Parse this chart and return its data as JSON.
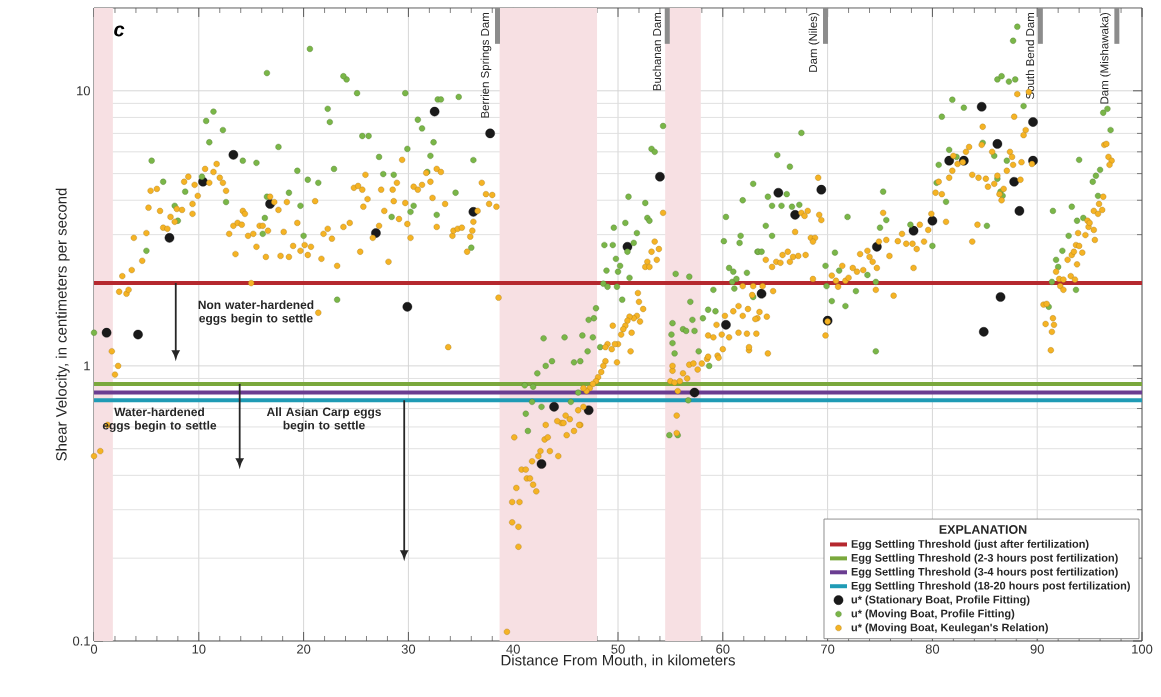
{
  "chart_data": {
    "type": "scatter",
    "xlabel": "Distance From Mouth, in kilometers",
    "ylabel": "Shear Velocity, in centimeters per second",
    "xlim": [
      0,
      100
    ],
    "xticks": [
      0,
      10,
      20,
      30,
      40,
      50,
      60,
      70,
      80,
      90,
      100
    ],
    "ylim": [
      0.1,
      20
    ],
    "yticks": [
      0.1,
      1,
      10
    ],
    "log": "y",
    "grid": true,
    "legend": "bottom right",
    "legend_title": "EXPLANATION",
    "marker": "circle",
    "ref_lines": [
      {
        "axis": "y",
        "value": 2.0,
        "label": "Egg Settling Threshold (just after fertilization)",
        "color": "#b5282e"
      },
      {
        "axis": "y",
        "value": 0.86,
        "label": "Egg Settling Threshold (2-3 hours post fertilization)",
        "color": "#7aa83c"
      },
      {
        "axis": "y",
        "value": 0.8,
        "label": "Egg Settling Threshold (3-4 hours post fertilization)",
        "color": "#6a3d91"
      },
      {
        "axis": "y",
        "value": 0.75,
        "label": "Egg Settling Threshold (18-20 hours post fertilization)",
        "color": "#1f9bb5"
      },
      {
        "axis": "x",
        "value": 38.5,
        "label": "Berrien Springs Dam",
        "color": "#8c8c8c"
      },
      {
        "axis": "x",
        "value": 54.7,
        "label": "Buchanan Dam",
        "color": "#8c8c8c"
      },
      {
        "axis": "x",
        "value": 69.8,
        "label": "Dam (Niles)",
        "color": "#8c8c8c"
      },
      {
        "axis": "x",
        "value": 90.3,
        "label": "South Bend Dam",
        "color": "#8c8c8c"
      },
      {
        "axis": "x",
        "value": 97.6,
        "label": "Dam (Mishawaka)",
        "color": "#8c8c8c"
      }
    ],
    "bands": [
      {
        "axis": "x",
        "from": 0,
        "to": 1.8,
        "color": "#f7e0e3"
      },
      {
        "axis": "x",
        "from": 38.7,
        "to": 48,
        "color": "#f7e0e3"
      },
      {
        "axis": "x",
        "from": 54.5,
        "to": 57.9,
        "color": "#f7e0e3"
      }
    ],
    "annotations": [
      "c",
      {
        "text": "Non water-hardened eggs begin to settle",
        "x": 7.8,
        "y": 2.0
      },
      {
        "text": "Water-hardened eggs begin to settle",
        "x": 13.9,
        "y": 0.86
      },
      {
        "text": "All Asian Carp eggs begin to settle",
        "x": 29.6,
        "y": 0.75
      }
    ],
    "series": [
      {
        "name": "u* (Stationary Boat, Profile Fitting)",
        "color": "#1a1a1a",
        "x": [
          1.2,
          4.2,
          7.2,
          10.4,
          13.3,
          16.8,
          26.9,
          29.9,
          32.5,
          36.2,
          37.8,
          42.7,
          43.9,
          47.2,
          50.9,
          54.0,
          57.3,
          60.3,
          63.7,
          65.3,
          66.9,
          69.4,
          70.0,
          74.7,
          78.2,
          80.0,
          81.6,
          83.0,
          84.7,
          84.9,
          86.2,
          86.5,
          87.8,
          88.3,
          89.6,
          89.6
        ],
        "values": [
          1.32,
          1.3,
          2.92,
          4.67,
          5.85,
          3.88,
          3.04,
          1.64,
          8.4,
          3.63,
          7.0,
          0.44,
          0.71,
          0.69,
          2.71,
          4.87,
          0.8,
          1.41,
          1.83,
          4.26,
          3.54,
          4.37,
          1.46,
          2.71,
          3.1,
          3.37,
          5.57,
          5.57,
          8.75,
          1.33,
          6.41,
          1.78,
          4.67,
          3.66,
          7.7,
          5.57
        ]
      },
      {
        "name": "u* (Moving Boat, Profile Fitting)",
        "color": "#7ab648",
        "x": [
          0.0,
          5.5,
          6.6,
          7.7,
          8.0,
          5.0,
          8.7,
          10.3,
          10.7,
          11.4,
          11.0,
          12.3,
          12.6,
          14.2,
          15.5,
          16.5,
          17.6,
          18.6,
          19.4,
          19.7,
          20.0,
          16.1,
          16.3,
          20.4,
          21.4,
          22.3,
          22.5,
          22.9,
          23.2,
          24.1,
          25.1,
          25.6,
          26.2,
          27.2,
          27.6,
          28.6,
          28.4,
          29.7,
          29.9,
          30.2,
          30.9,
          31.3,
          32.1,
          32.4,
          32.7,
          32.8,
          16.5,
          20.6,
          23.8,
          88.1,
          87.7,
          86.2,
          86.6,
          33.1,
          34.8,
          31.8,
          30.5,
          34.5,
          36.2,
          36.0,
          54.3,
          53.2,
          53.5,
          51.0,
          52.6,
          52.8,
          53.0,
          49.6,
          50.7,
          51.8,
          48.7,
          49.5,
          51.5,
          50.9,
          49.8,
          50.2,
          48.9,
          50.0,
          51.1,
          48.6,
          49.0,
          49.9,
          50.4,
          47.9,
          47.7,
          47.2,
          46.6,
          47.6,
          44.9,
          42.9,
          47.1,
          48.3,
          45.8,
          46.4,
          43.7,
          43.1,
          42.3,
          41.1,
          41.9,
          46.2,
          41.8,
          45.5,
          41.2,
          42.7,
          41.4,
          55.5,
          56.8,
          56.9,
          57.1,
          55.2,
          56.2,
          57.3,
          56.5,
          55.1,
          55.2,
          55.4,
          58.1,
          58.6,
          59.3,
          59.1,
          60.6,
          60.9,
          61.1,
          61.3,
          60.3,
          60.1,
          61.6,
          61.7,
          61.9,
          62.9,
          63.3,
          62.3,
          61.0,
          54.9,
          55.7,
          58.7,
          56.7,
          57.7,
          67.5,
          65.2,
          66.4,
          64.3,
          64.7,
          66.1,
          65.6,
          66.6,
          67.3,
          64.1,
          64.7,
          63.4,
          63.7,
          62.9,
          70.7,
          69.8,
          71.1,
          69.9,
          70.4,
          71.7,
          72.7,
          73.8,
          71.9,
          75.0,
          75.6,
          75.3,
          74.6,
          74.6,
          77.9,
          80.0,
          81.3,
          80.4,
          80.6,
          81.6,
          80.9,
          81.9,
          83.0,
          82.3,
          84.8,
          85.9,
          87.1,
          86.2,
          86.5,
          86.7,
          85.2,
          88.7,
          87.3,
          87.9,
          94.0,
          91.5,
          93.3,
          93.0,
          92.4,
          91.8,
          92.0,
          91.4,
          91.1,
          93.7,
          93.8,
          94.4,
          95.3,
          95.6,
          95.8,
          96.0,
          96.3,
          96.7,
          97.0
        ],
        "values": [
          1.32,
          5.57,
          4.67,
          3.82,
          3.37,
          2.62,
          4.3,
          4.87,
          7.77,
          8.4,
          6.5,
          7.2,
          3.94,
          5.57,
          5.47,
          4.12,
          6.25,
          4.26,
          5.12,
          3.82,
          2.97,
          3.02,
          3.45,
          4.75,
          4.63,
          8.6,
          7.7,
          5.2,
          1.74,
          11.0,
          9.8,
          6.85,
          6.85,
          5.75,
          4.98,
          4.95,
          3.48,
          9.8,
          6.15,
          3.63,
          7.85,
          7.3,
          5.8,
          6.5,
          3.54,
          9.3,
          11.6,
          14.2,
          11.3,
          17.1,
          15.2,
          11.0,
          11.3,
          9.3,
          9.5,
          5.07,
          3.82,
          4.26,
          5.6,
          2.69,
          7.45,
          6.15,
          6.0,
          4.12,
          3.91,
          3.45,
          3.37,
          3.18,
          3.31,
          3.04,
          2.75,
          2.75,
          2.8,
          2.6,
          2.45,
          2.31,
          2.22,
          2.2,
          2.09,
          1.99,
          1.94,
          1.94,
          1.74,
          1.62,
          1.49,
          1.47,
          1.29,
          1.27,
          1.27,
          1.26,
          1.13,
          1.17,
          1.03,
          1.04,
          1.04,
          1.0,
          0.94,
          0.85,
          0.84,
          0.8,
          0.74,
          0.74,
          0.67,
          0.71,
          0.58,
          2.16,
          2.11,
          1.71,
          1.47,
          1.43,
          1.36,
          1.34,
          1.34,
          1.3,
          1.21,
          1.11,
          1.49,
          1.6,
          1.58,
          1.89,
          2.27,
          2.02,
          1.91,
          2.07,
          3.48,
          2.84,
          2.8,
          2.97,
          4.0,
          4.59,
          2.6,
          2.18,
          2.2,
          0.56,
          0.56,
          1.0,
          0.75,
          1.13,
          7.03,
          5.84,
          5.3,
          4.12,
          3.82,
          4.21,
          3.82,
          3.79,
          3.85,
          3.23,
          2.97,
          2.6,
          2.6,
          1.78,
          2.58,
          2.31,
          2.22,
          1.95,
          1.72,
          1.65,
          1.87,
          2.14,
          3.48,
          3.18,
          3.39,
          4.3,
          2.02,
          1.13,
          3.26,
          2.73,
          3.95,
          4.63,
          5.38,
          6.1,
          8.05,
          9.28,
          8.68,
          5.75,
          6.47,
          5.8,
          5.57,
          4.79,
          4.3,
          4.15,
          3.23,
          8.8,
          10.8,
          11.0,
          5.61,
          3.66,
          3.79,
          2.97,
          2.62,
          2.43,
          2.29,
          2.02,
          1.64,
          1.89,
          3.37,
          3.45,
          4.67,
          4.91,
          4.15,
          5.16,
          8.32,
          8.6,
          7.2
        ]
      },
      {
        "name": "u* (Moving Boat, Keulegan's Relation)",
        "color": "#f5b324",
        "x": [
          0.0,
          0.6,
          1.3,
          1.7,
          2.3,
          2.0,
          2.4,
          3.1,
          3.3,
          2.7,
          3.6,
          3.8,
          4.6,
          5.0,
          5.2,
          5.4,
          6.0,
          6.3,
          6.6,
          7.0,
          7.3,
          7.7,
          7.9,
          8.4,
          8.6,
          9.0,
          9.4,
          9.4,
          9.6,
          9.9,
          10.6,
          11.0,
          11.4,
          11.7,
          12.0,
          12.3,
          12.6,
          12.9,
          13.3,
          13.5,
          13.7,
          14.1,
          14.2,
          14.4,
          14.7,
          15.2,
          15.0,
          15.5,
          15.8,
          16.1,
          16.4,
          16.6,
          16.8,
          17.2,
          17.6,
          17.8,
          18.1,
          18.4,
          18.6,
          19.0,
          19.4,
          19.7,
          20.1,
          20.4,
          20.7,
          21.1,
          21.4,
          21.7,
          21.9,
          22.3,
          22.7,
          23.2,
          23.8,
          24.4,
          24.8,
          25.2,
          25.6,
          25.7,
          26.1,
          25.9,
          25.4,
          26.6,
          27.2,
          27.4,
          27.7,
          28.1,
          28.5,
          28.6,
          28.9,
          29.1,
          29.4,
          29.7,
          29.9,
          30.2,
          30.5,
          30.9,
          31.3,
          31.7,
          32.1,
          32.3,
          32.7,
          32.7,
          33.1,
          33.5,
          33.8,
          34.2,
          34.3,
          34.7,
          35.1,
          35.6,
          35.9,
          36.1,
          36.2,
          36.6,
          37.0,
          37.4,
          38.0,
          37.7,
          38.4,
          38.6,
          53.5,
          53.2,
          53.9,
          53.7,
          52.8,
          52.6,
          53.0,
          54.3,
          51.9,
          52.0,
          52.4,
          51.8,
          51.5,
          51.1,
          50.9,
          50.7,
          50.5,
          52.1,
          51.3,
          49.5,
          50.3,
          50.0,
          49.7,
          49.0,
          48.8,
          49.4,
          51.2,
          49.9,
          48.8,
          48.6,
          48.4,
          48.1,
          47.9,
          47.6,
          47.3,
          47.0,
          46.7,
          46.2,
          46.7,
          46.4,
          45.8,
          45.4,
          45.0,
          44.6,
          44.2,
          43.1,
          40.1,
          40.3,
          39.9,
          40.6,
          39.9,
          40.5,
          40.5,
          39.4,
          40.8,
          41.2,
          41.3,
          41.6,
          41.9,
          42.2,
          41.8,
          42.4,
          42.6,
          43.0,
          43.3,
          43.5,
          44.3,
          44.8,
          45.1,
          46.3,
          55.2,
          55.0,
          55.4,
          55.9,
          56.2,
          56.6,
          56.8,
          57.2,
          57.6,
          58.0,
          58.5,
          55.7,
          55.6,
          55.6,
          55.2,
          59.5,
          60.0,
          62.5,
          64.3,
          58.6,
          59.6,
          62.5,
          58.6,
          59.1,
          59.9,
          60.6,
          61.5,
          62.3,
          63.2,
          59.4,
          60.2,
          61.0,
          61.5,
          61.9,
          62.4,
          63.3,
          61.9,
          62.9,
          62.8,
          63.1,
          63.5,
          64.2,
          63.8,
          64.8,
          64.1,
          64.7,
          65.1,
          65.5,
          65.7,
          66.2,
          66.7,
          67.2,
          67.9,
          66.4,
          66.9,
          67.5,
          67.8,
          68.1,
          68.4,
          68.8,
          68.6,
          69.1,
          69.2,
          69.4,
          68.6,
          69.8,
          70.0,
          70.4,
          70.8,
          71.0,
          71.4,
          71.7,
          72.0,
          72.4,
          72.8,
          73.1,
          73.4,
          73.8,
          74.0,
          74.3,
          74.7,
          74.6,
          74.9,
          75.3,
          75.6,
          75.9,
          76.3,
          76.7,
          77.1,
          77.5,
          78.1,
          78.5,
          78.2,
          78.8,
          79.2,
          79.6,
          79.9,
          80.3,
          80.9,
          80.6,
          81.3,
          81.6,
          81.9,
          82.0,
          82.4,
          82.9,
          83.2,
          83.5,
          83.8,
          84.4,
          84.7,
          84.8,
          84.3,
          83.8,
          85.1,
          85.3,
          85.7,
          85.9,
          86.2,
          86.4,
          86.6,
          86.8,
          87.1,
          87.4,
          87.6,
          87.7,
          88.4,
          88.5,
          87.8,
          88.1,
          89.2,
          88.9,
          88.7,
          89.5,
          90.6,
          90.9,
          90.8,
          91.5,
          91.6,
          91.4,
          91.3,
          91.8,
          92.1,
          92.5,
          92.2,
          92.5,
          92.9,
          93.3,
          93.5,
          93.8,
          93.7,
          94.0,
          94.3,
          93.2,
          93.6,
          93.9,
          94.6,
          94.9,
          94.8,
          95.0,
          95.4,
          95.5,
          95.4,
          95.8,
          95.9,
          96.2,
          96.3,
          96.4,
          96.6,
          96.8,
          97.1,
          96.9
        ],
        "values": [
          0.47,
          0.49,
          0.61,
          1.13,
          1.0,
          0.93,
          1.86,
          1.83,
          1.89,
          2.12,
          2.23,
          2.92,
          2.41,
          3.04,
          3.76,
          4.33,
          4.4,
          3.66,
          3.18,
          3.15,
          3.48,
          3.34,
          3.72,
          3.69,
          4.67,
          4.87,
          3.57,
          3.88,
          4.55,
          4.15,
          5.2,
          4.63,
          5.07,
          5.42,
          4.83,
          4.63,
          4.33,
          3.02,
          3.23,
          2.55,
          3.31,
          3.26,
          3.66,
          3.57,
          2.97,
          3.02,
          2.0,
          2.71,
          3.23,
          3.23,
          2.49,
          3.1,
          4.12,
          3.94,
          3.69,
          2.51,
          3.07,
          3.94,
          2.49,
          2.73,
          3.31,
          2.62,
          2.75,
          2.53,
          2.71,
          3.97,
          1.56,
          2.45,
          3.02,
          3.15,
          2.9,
          2.31,
          3.2,
          3.31,
          4.44,
          4.51,
          4.37,
          3.79,
          4.04,
          4.95,
          2.6,
          2.92,
          3.23,
          4.37,
          3.66,
          2.39,
          4.37,
          3.97,
          4.63,
          3.42,
          5.61,
          3.91,
          3.28,
          2.92,
          4.48,
          4.37,
          4.55,
          5.03,
          4.67,
          4.08,
          3.2,
          5.2,
          5.07,
          3.88,
          1.17,
          2.97,
          3.1,
          3.15,
          3.18,
          2.6,
          2.95,
          3.1,
          3.34,
          3.66,
          4.63,
          4.21,
          4.18,
          3.88,
          3.79,
          1.77,
          2.83,
          2.6,
          2.66,
          2.43,
          2.39,
          2.29,
          2.29,
          3.6,
          1.84,
          1.71,
          1.61,
          1.52,
          1.49,
          1.51,
          1.46,
          1.4,
          1.36,
          1.45,
          1.32,
          1.4,
          1.3,
          1.2,
          1.2,
          1.2,
          1.17,
          1.15,
          1.13,
          1.03,
          1.04,
          1.0,
          0.95,
          0.91,
          0.88,
          0.86,
          0.83,
          0.81,
          0.83,
          0.69,
          0.71,
          0.61,
          0.58,
          0.64,
          0.66,
          0.62,
          0.63,
          0.61,
          0.55,
          0.36,
          0.32,
          0.32,
          0.27,
          0.26,
          0.22,
          0.108,
          0.42,
          0.42,
          0.39,
          0.39,
          0.37,
          0.35,
          0.45,
          0.47,
          0.49,
          0.54,
          0.55,
          0.49,
          0.47,
          0.62,
          0.56,
          0.61,
          0.96,
          0.88,
          0.87,
          0.88,
          0.94,
          0.9,
          1.01,
          1.02,
          0.97,
          1.02,
          1.06,
          0.81,
          0.66,
          0.57,
          1.0,
          1.09,
          1.15,
          1.14,
          1.11,
          1.08,
          1.07,
          1.17,
          1.29,
          1.27,
          1.3,
          1.27,
          1.32,
          1.31,
          1.31,
          1.41,
          1.52,
          1.58,
          1.65,
          1.52,
          1.61,
          1.49,
          1.95,
          1.95,
          1.81,
          1.48,
          1.57,
          1.51,
          1.95,
          1.87,
          2.43,
          2.29,
          2.39,
          2.37,
          2.53,
          2.6,
          2.49,
          2.51,
          2.53,
          2.39,
          3.07,
          3.6,
          3.51,
          3.66,
          2.92,
          2.92,
          2.83,
          4.83,
          3.54,
          3.39,
          2.07,
          1.29,
          1.45,
          2.13,
          2.04,
          1.94,
          2.31,
          2.04,
          2.09,
          2.27,
          2.2,
          2.55,
          2.23,
          2.62,
          2.49,
          2.39,
          2.27,
          1.89,
          2.83,
          3.6,
          2.87,
          2.51,
          1.8,
          2.84,
          3.02,
          2.78,
          2.78,
          2.66,
          2.27,
          3.26,
          2.83,
          3.12,
          3.57,
          4.26,
          4.21,
          4.67,
          3.34,
          4.83,
          5.12,
          5.8,
          5.42,
          5.5,
          6.0,
          6.25,
          4.95,
          4.83,
          6.36,
          7.4,
          3.26,
          2.83,
          4.79,
          4.48,
          6.0,
          4.59,
          4.91,
          4.21,
          4.0,
          4.4,
          5.12,
          6.0,
          5.75,
          5.38,
          4.75,
          5.5,
          8.05,
          9.73,
          9.9,
          7.2,
          6.9,
          5.42,
          1.67,
          1.68,
          1.42,
          1.49,
          1.41,
          1.33,
          1.14,
          2.2,
          2.07,
          2.06,
          1.95,
          1.89,
          2.43,
          2.53,
          2.6,
          2.34,
          2.75,
          2.73,
          2.58,
          2.12,
          2.06,
          3.04,
          2.99,
          3.2,
          3.37,
          3.31,
          3.12,
          2.87,
          3.66,
          3.57,
          3.88,
          3.69,
          4.12,
          6.36,
          6.41,
          5.75,
          5.57,
          5.38
        ]
      }
    ]
  }
}
